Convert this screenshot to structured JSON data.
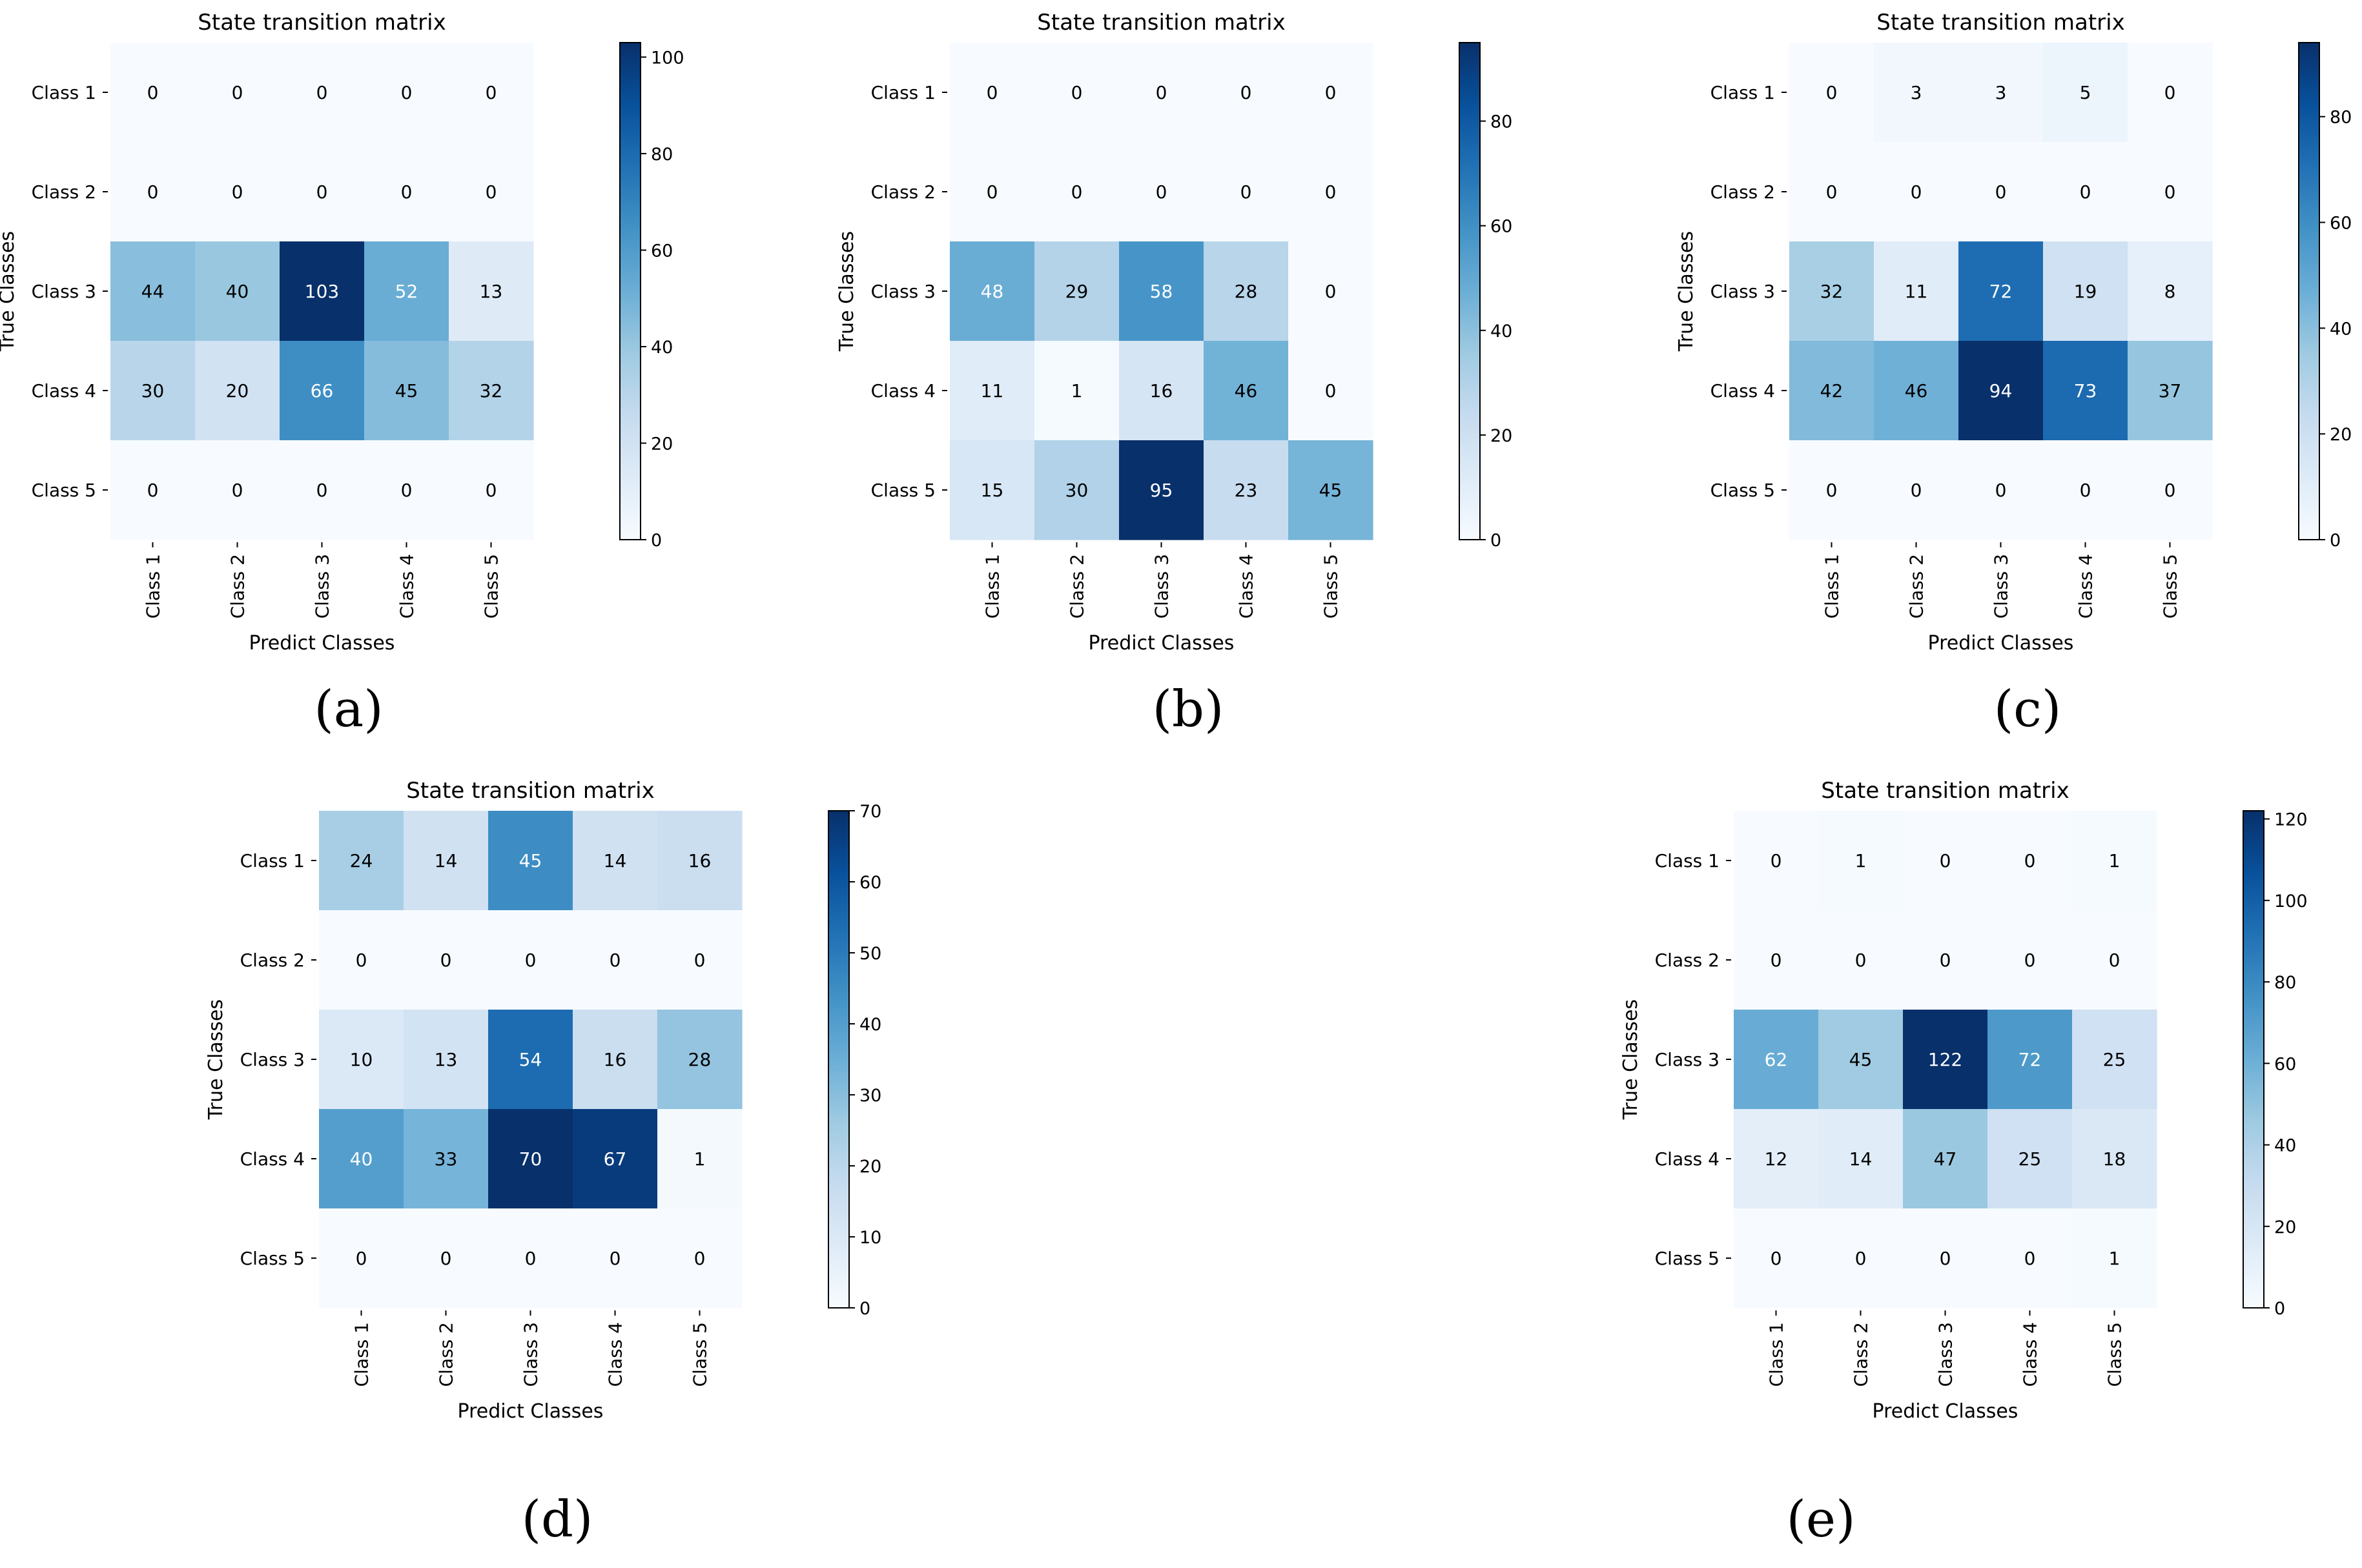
{
  "colormap": {
    "stops": [
      "#f7fbff",
      "#deebf7",
      "#c6dbef",
      "#9ecae1",
      "#6baed6",
      "#4292c6",
      "#2171b5",
      "#08519c",
      "#08306b"
    ],
    "text_light": "#ffffff",
    "text_dark": "#000000"
  },
  "chart_data": [
    {
      "type": "heatmap",
      "panel": "(a)",
      "title": "State transition matrix",
      "xlabel": "Predict Classes",
      "ylabel": "True Classes",
      "x_categories": [
        "Class 1",
        "Class 2",
        "Class 3",
        "Class 4",
        "Class 5"
      ],
      "y_categories": [
        "Class 1",
        "Class 2",
        "Class 3",
        "Class 4",
        "Class 5"
      ],
      "matrix": [
        [
          0,
          0,
          0,
          0,
          0
        ],
        [
          0,
          0,
          0,
          0,
          0
        ],
        [
          44,
          40,
          103,
          52,
          13
        ],
        [
          30,
          20,
          66,
          45,
          32
        ],
        [
          0,
          0,
          0,
          0,
          0
        ]
      ],
      "colorbar": {
        "min": 0,
        "max": 103,
        "ticks": [
          0,
          20,
          40,
          60,
          80,
          100
        ]
      }
    },
    {
      "type": "heatmap",
      "panel": "(b)",
      "title": "State transition matrix",
      "xlabel": "Predict Classes",
      "ylabel": "True Classes",
      "x_categories": [
        "Class 1",
        "Class 2",
        "Class 3",
        "Class 4",
        "Class 5"
      ],
      "y_categories": [
        "Class 1",
        "Class 2",
        "Class 3",
        "Class 4",
        "Class 5"
      ],
      "matrix": [
        [
          0,
          0,
          0,
          0,
          0
        ],
        [
          0,
          0,
          0,
          0,
          0
        ],
        [
          48,
          29,
          58,
          28,
          0
        ],
        [
          11,
          1,
          16,
          46,
          0
        ],
        [
          15,
          30,
          95,
          23,
          45
        ]
      ],
      "colorbar": {
        "min": 0,
        "max": 95,
        "ticks": [
          0,
          20,
          40,
          60,
          80
        ]
      }
    },
    {
      "type": "heatmap",
      "panel": "(c)",
      "title": "State transition matrix",
      "xlabel": "Predict Classes",
      "ylabel": "True Classes",
      "x_categories": [
        "Class 1",
        "Class 2",
        "Class 3",
        "Class 4",
        "Class 5"
      ],
      "y_categories": [
        "Class 1",
        "Class 2",
        "Class 3",
        "Class 4",
        "Class 5"
      ],
      "matrix": [
        [
          0,
          3,
          3,
          5,
          0
        ],
        [
          0,
          0,
          0,
          0,
          0
        ],
        [
          32,
          11,
          72,
          19,
          8
        ],
        [
          42,
          46,
          94,
          73,
          37
        ],
        [
          0,
          0,
          0,
          0,
          0
        ]
      ],
      "colorbar": {
        "min": 0,
        "max": 94,
        "ticks": [
          0,
          20,
          40,
          60,
          80
        ]
      }
    },
    {
      "type": "heatmap",
      "panel": "(d)",
      "title": "State transition matrix",
      "xlabel": "Predict Classes",
      "ylabel": "True Classes",
      "x_categories": [
        "Class 1",
        "Class 2",
        "Class 3",
        "Class 4",
        "Class 5"
      ],
      "y_categories": [
        "Class 1",
        "Class 2",
        "Class 3",
        "Class 4",
        "Class 5"
      ],
      "matrix": [
        [
          24,
          14,
          45,
          14,
          16
        ],
        [
          0,
          0,
          0,
          0,
          0
        ],
        [
          10,
          13,
          54,
          16,
          28
        ],
        [
          40,
          33,
          70,
          67,
          1
        ],
        [
          0,
          0,
          0,
          0,
          0
        ]
      ],
      "colorbar": {
        "min": 0,
        "max": 70,
        "ticks": [
          0,
          10,
          20,
          30,
          40,
          50,
          60,
          70
        ]
      }
    },
    {
      "type": "heatmap",
      "panel": "(e)",
      "title": "State transition matrix",
      "xlabel": "Predict Classes",
      "ylabel": "True Classes",
      "x_categories": [
        "Class 1",
        "Class 2",
        "Class 3",
        "Class 4",
        "Class 5"
      ],
      "y_categories": [
        "Class 1",
        "Class 2",
        "Class 3",
        "Class 4",
        "Class 5"
      ],
      "matrix": [
        [
          0,
          1,
          0,
          0,
          1
        ],
        [
          0,
          0,
          0,
          0,
          0
        ],
        [
          62,
          45,
          122,
          72,
          25
        ],
        [
          12,
          14,
          47,
          25,
          18
        ],
        [
          0,
          0,
          0,
          0,
          1
        ]
      ],
      "colorbar": {
        "min": 0,
        "max": 122,
        "ticks": [
          0,
          20,
          40,
          60,
          80,
          100,
          120
        ]
      }
    }
  ]
}
